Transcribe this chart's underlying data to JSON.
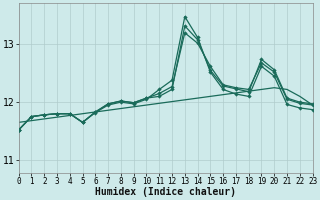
{
  "xlabel": "Humidex (Indice chaleur)",
  "xlim": [
    0,
    23
  ],
  "ylim": [
    10.78,
    13.72
  ],
  "yticks": [
    11,
    12,
    13
  ],
  "xticks": [
    0,
    1,
    2,
    3,
    4,
    5,
    6,
    7,
    8,
    9,
    10,
    11,
    12,
    13,
    14,
    15,
    16,
    17,
    18,
    19,
    20,
    21,
    22,
    23
  ],
  "background_color": "#ceeaea",
  "grid_color": "#b0cccc",
  "line_color": "#1a6b5a",
  "line_flat": [
    11.65,
    11.68,
    11.71,
    11.74,
    11.77,
    11.8,
    11.83,
    11.86,
    11.89,
    11.92,
    11.95,
    11.98,
    12.01,
    12.04,
    12.07,
    12.1,
    12.13,
    12.16,
    12.19,
    12.22,
    12.25,
    12.22,
    12.1,
    11.95
  ],
  "line_spike": [
    11.52,
    11.75,
    11.78,
    11.8,
    11.8,
    11.65,
    11.82,
    11.95,
    12.0,
    11.97,
    12.05,
    12.22,
    12.38,
    13.48,
    13.12,
    12.52,
    12.22,
    12.14,
    12.1,
    12.62,
    12.45,
    11.96,
    11.9,
    11.87
  ],
  "line_mid1": [
    11.52,
    11.75,
    11.78,
    11.8,
    11.8,
    11.65,
    11.83,
    11.97,
    12.02,
    11.99,
    12.07,
    12.15,
    12.27,
    13.2,
    13.02,
    12.62,
    12.3,
    12.25,
    12.22,
    12.68,
    12.52,
    12.05,
    11.98,
    11.95
  ],
  "line_mid2": [
    11.52,
    11.75,
    11.78,
    11.8,
    11.8,
    11.65,
    11.83,
    11.97,
    12.02,
    11.99,
    12.07,
    12.1,
    12.22,
    13.32,
    13.08,
    12.55,
    12.28,
    12.23,
    12.18,
    12.74,
    12.56,
    12.07,
    12.0,
    11.97
  ]
}
